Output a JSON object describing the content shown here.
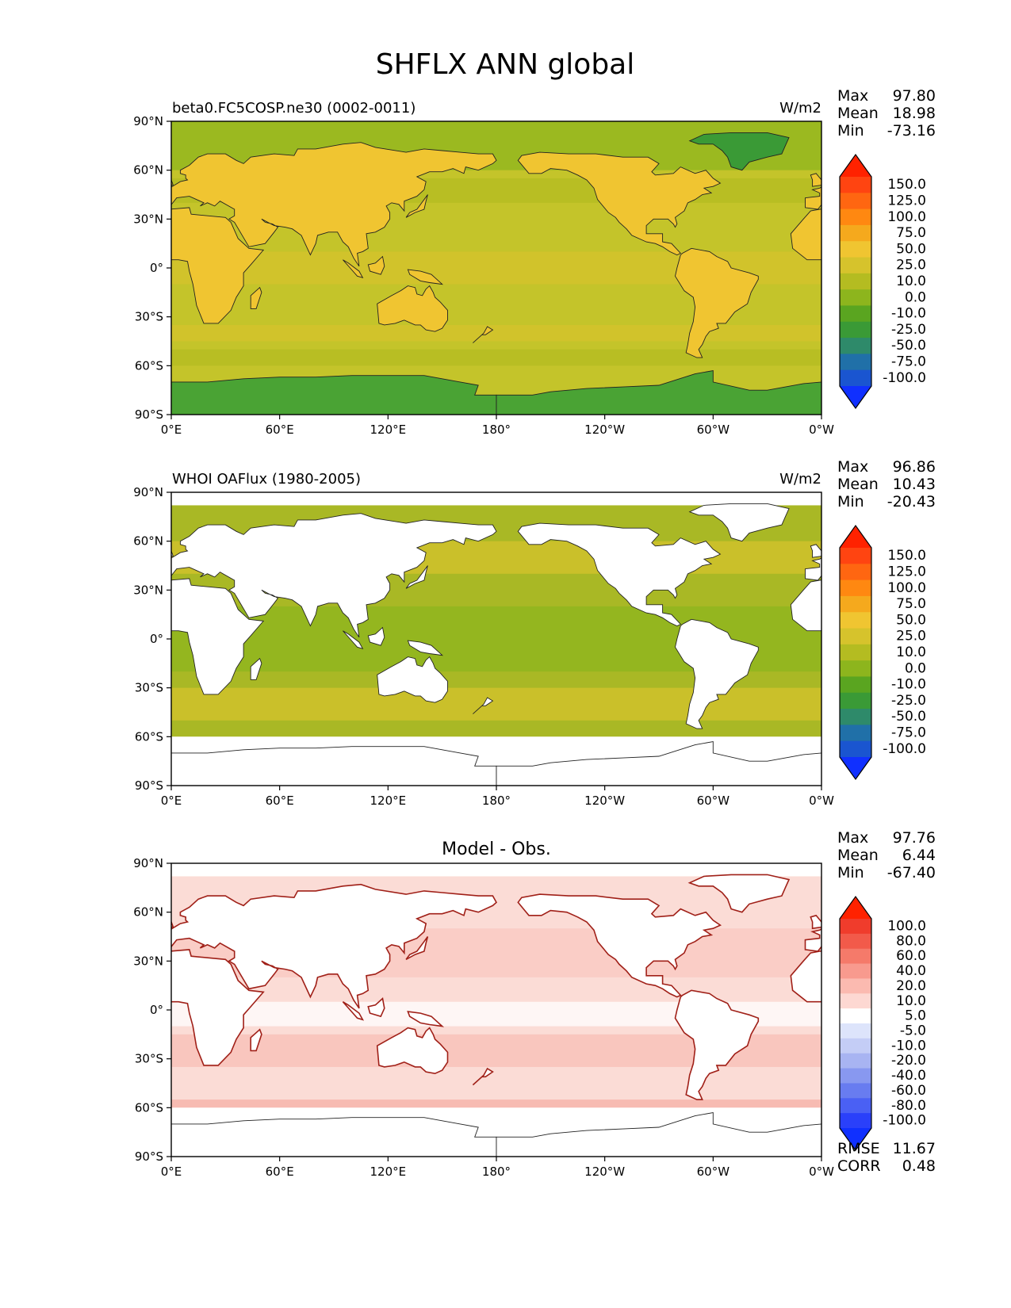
{
  "figure_title": "SHFLX ANN global",
  "chart_data": [
    {
      "type": "heatmap",
      "left_title": "beta0.FC5COSP.ne30 (0002-0011)",
      "center_title": "",
      "units": "W/m2",
      "stats": [
        {
          "label": "Max",
          "value": "97.80"
        },
        {
          "label": "Mean",
          "value": "18.98"
        },
        {
          "label": "Min",
          "value": "-73.16"
        }
      ],
      "colorbar": {
        "levels": [
          "150.0",
          "125.0",
          "100.0",
          "75.0",
          "50.0",
          "25.0",
          "10.0",
          "0.0",
          "-10.0",
          "-25.0",
          "-50.0",
          "-75.0",
          "-100.0"
        ],
        "colors": [
          "#ff2200",
          "#ff4411",
          "#ff6611",
          "#ff8811",
          "#f5a91d",
          "#f0c531",
          "#d6c32c",
          "#b4bc21",
          "#8db51d",
          "#5aa520",
          "#3a9a36",
          "#2e8a6a",
          "#2070a8",
          "#1a55d0",
          "#1030ff"
        ]
      },
      "dominant_color": "#c4c42a",
      "ocean_color": "#c4c42a",
      "land_color": "#f0c531",
      "south_color": "#4aa334",
      "has_mask": false,
      "x_ticks": [
        "0°E",
        "60°E",
        "120°E",
        "180°",
        "120°W",
        "60°W",
        "0°W"
      ],
      "y_ticks": [
        "90°N",
        "60°N",
        "30°N",
        "0°",
        "30°S",
        "60°S",
        "90°S"
      ],
      "xlim": [
        0,
        360
      ],
      "ylim": [
        -90,
        90
      ]
    },
    {
      "type": "heatmap",
      "left_title": "WHOI OAFlux (1980-2005)",
      "center_title": "",
      "units": "W/m2",
      "stats": [
        {
          "label": "Max",
          "value": "96.86"
        },
        {
          "label": "Mean",
          "value": "10.43"
        },
        {
          "label": "Min",
          "value": "-20.43"
        }
      ],
      "colorbar": {
        "levels": [
          "150.0",
          "125.0",
          "100.0",
          "75.0",
          "50.0",
          "25.0",
          "10.0",
          "0.0",
          "-10.0",
          "-25.0",
          "-50.0",
          "-75.0",
          "-100.0"
        ],
        "colors": [
          "#ff2200",
          "#ff4411",
          "#ff6611",
          "#ff8811",
          "#f5a91d",
          "#f0c531",
          "#d6c32c",
          "#b4bc21",
          "#8db51d",
          "#5aa520",
          "#3a9a36",
          "#2e8a6a",
          "#2070a8",
          "#1a55d0",
          "#1030ff"
        ]
      },
      "dominant_color": "#a9b825",
      "ocean_color": "#a9b825",
      "land_color": "#ffffff",
      "south_color": "#ffffff",
      "has_mask": true,
      "x_ticks": [
        "0°E",
        "60°E",
        "120°E",
        "180°",
        "120°W",
        "60°W",
        "0°W"
      ],
      "y_ticks": [
        "90°N",
        "60°N",
        "30°N",
        "0°",
        "30°S",
        "60°S",
        "90°S"
      ],
      "xlim": [
        0,
        360
      ],
      "ylim": [
        -90,
        90
      ]
    },
    {
      "type": "heatmap",
      "left_title": "",
      "center_title": "Model - Obs.",
      "units": "",
      "stats": [
        {
          "label": "Max",
          "value": "97.76"
        },
        {
          "label": "Mean",
          "value": "6.44"
        },
        {
          "label": "Min",
          "value": "-67.40"
        }
      ],
      "colorbar": {
        "levels": [
          "100.0",
          "80.0",
          "60.0",
          "40.0",
          "20.0",
          "10.0",
          "5.0",
          "-5.0",
          "-10.0",
          "-20.0",
          "-40.0",
          "-60.0",
          "-80.0",
          "-100.0"
        ],
        "colors": [
          "#ff2200",
          "#f03c2c",
          "#f25a4a",
          "#f57a6a",
          "#f89a8e",
          "#fbbab0",
          "#fdd8d2",
          "#ffffff",
          "#dde4fb",
          "#c4cdf6",
          "#a8b4f2",
          "#8898f0",
          "#687cf0",
          "#4a60f4",
          "#2a40fa",
          "#1030ff"
        ]
      },
      "dominant_color": "#fbdcd6",
      "ocean_color": "#fbdcd6",
      "land_color": "#ffffff",
      "south_color": "#ffffff",
      "has_mask": true,
      "x_ticks": [
        "0°E",
        "60°E",
        "120°E",
        "180°",
        "120°W",
        "60°W",
        "0°W"
      ],
      "y_ticks": [
        "90°N",
        "60°N",
        "30°N",
        "0°",
        "30°S",
        "60°S",
        "90°S"
      ],
      "xlim": [
        0,
        360
      ],
      "ylim": [
        -90,
        90
      ],
      "metrics": [
        {
          "label": "RMSE",
          "value": "11.67"
        },
        {
          "label": "CORR",
          "value": "0.48"
        }
      ]
    }
  ]
}
